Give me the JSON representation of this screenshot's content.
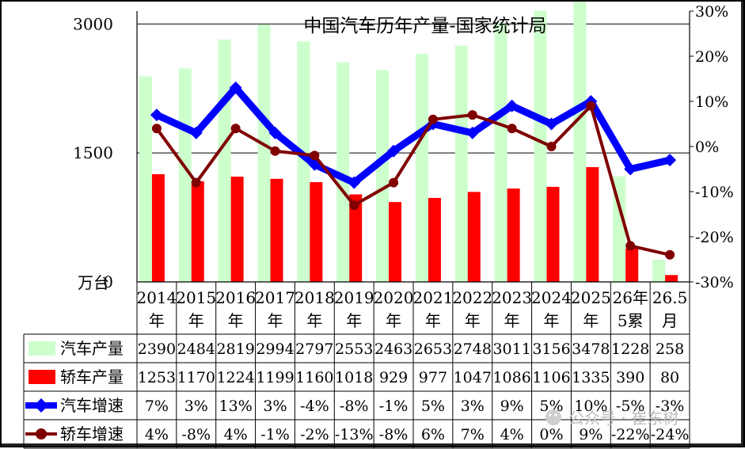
{
  "chart_data": {
    "type": "bar",
    "title": "中国汽车历年产量-国家统计局",
    "ylabel": "万台",
    "ylim": [
      0,
      3150
    ],
    "y2lim": [
      -0.3,
      0.3
    ],
    "yticks": [
      "3000",
      "1500",
      "0"
    ],
    "y2ticks": [
      "30%",
      "20%",
      "10%",
      "0%",
      "-10%",
      "-20%",
      "-30%"
    ],
    "categories": [
      [
        "2014",
        "年"
      ],
      [
        "2015",
        "年"
      ],
      [
        "2016",
        "年"
      ],
      [
        "2017",
        "年"
      ],
      [
        "2018",
        "年"
      ],
      [
        "2019",
        "年"
      ],
      [
        "2020",
        "年"
      ],
      [
        "2021",
        "年"
      ],
      [
        "2022",
        "年"
      ],
      [
        "2023",
        "年"
      ],
      [
        "2024",
        "年"
      ],
      [
        "2025",
        "年"
      ],
      [
        "26年",
        "5累"
      ],
      [
        "26.5",
        "月"
      ]
    ],
    "series": [
      {
        "name": "汽车产量",
        "kind": "bar",
        "axis": "left",
        "color": "#ccffcc",
        "values": [
          2390,
          2484,
          2819,
          2994,
          2797,
          2553,
          2463,
          2653,
          2748,
          3011,
          3156,
          3478,
          1228,
          258
        ],
        "labels": [
          "2390",
          "2484",
          "2819",
          "2994",
          "2797",
          "2553",
          "2463",
          "2653",
          "2748",
          "3011",
          "3156",
          "3478",
          "1228",
          "258"
        ]
      },
      {
        "name": "轿车产量",
        "kind": "bar",
        "axis": "left",
        "color": "#ff0000",
        "values": [
          1253,
          1170,
          1224,
          1199,
          1160,
          1018,
          929,
          977,
          1047,
          1086,
          1106,
          1335,
          390,
          80
        ],
        "labels": [
          "1253",
          "1170",
          "1224",
          "1199",
          "1160",
          "1018",
          "929",
          "977",
          "1047",
          "1086",
          "1106",
          "1335",
          "390",
          "80"
        ]
      },
      {
        "name": "汽车增速",
        "kind": "line",
        "axis": "right",
        "color": "#0000ff",
        "values": [
          0.07,
          0.03,
          0.13,
          0.03,
          -0.04,
          -0.08,
          -0.01,
          0.05,
          0.03,
          0.09,
          0.05,
          0.1,
          -0.05,
          -0.03
        ],
        "labels": [
          "7%",
          "3%",
          "13%",
          "3%",
          "-4%",
          "-8%",
          "-1%",
          "5%",
          "3%",
          "9%",
          "5%",
          "10%",
          "-5%",
          "-3%"
        ]
      },
      {
        "name": "轿车增速",
        "kind": "line",
        "axis": "right",
        "color": "#800000",
        "values": [
          0.04,
          -0.08,
          0.04,
          -0.01,
          -0.02,
          -0.13,
          -0.08,
          0.06,
          0.07,
          0.04,
          0.0,
          0.09,
          -0.22,
          -0.24
        ],
        "labels": [
          "4%",
          "-8%",
          "4%",
          "-1%",
          "-2%",
          "-13%",
          "-8%",
          "6%",
          "7%",
          "4%",
          "0%",
          "9%",
          "-22%",
          "-24%"
        ]
      }
    ]
  },
  "watermark": "公众号 · 崔东树"
}
